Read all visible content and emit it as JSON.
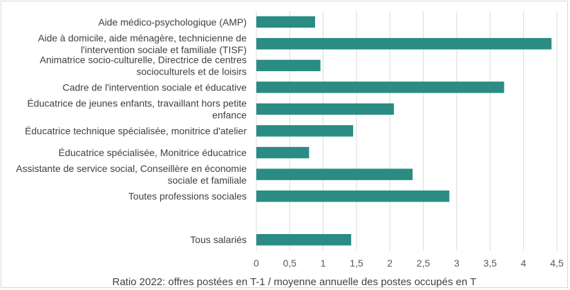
{
  "chart_data": {
    "type": "bar",
    "orientation": "horizontal",
    "categories": [
      [
        "Aide médico-psychologique (AMP)"
      ],
      [
        "Aide à domicile, aide ménagère, technicienne de",
        "l'intervention sociale et familiale (TISF)"
      ],
      [
        "Animatrice socio-culturelle, Directrice de centres",
        "socioculturels et de loisirs"
      ],
      [
        "Cadre de l'intervention sociale et éducative"
      ],
      [
        "Éducatrice de jeunes enfants, travaillant hors petite",
        "enfance"
      ],
      [
        "Éducatrice technique spécialisée, monitrice d'atelier"
      ],
      [
        "Éducatrice spécialisée, Monitrice éducatrice"
      ],
      [
        "Assistante de service social, Conseillère en économie",
        "sociale et familiale"
      ],
      [
        "Toutes professions sociales"
      ],
      [
        ""
      ],
      [
        "Tous salariés"
      ]
    ],
    "values": [
      0.88,
      4.42,
      0.96,
      3.71,
      2.06,
      1.45,
      0.79,
      2.34,
      2.89,
      null,
      1.42
    ],
    "xlabel": "Ratio 2022: offres postées en T-1 / moyenne annuelle des postes occupés en T",
    "xlim": [
      0,
      4.5
    ],
    "ticks": [
      "0",
      "0,5",
      "1",
      "1,5",
      "2",
      "2,5",
      "3",
      "3,5",
      "4",
      "4,5"
    ],
    "tick_values": [
      0,
      0.5,
      1,
      1.5,
      2,
      2.5,
      3,
      3.5,
      4,
      4.5
    ],
    "grid": true,
    "bar_color": "#2a8c83"
  }
}
